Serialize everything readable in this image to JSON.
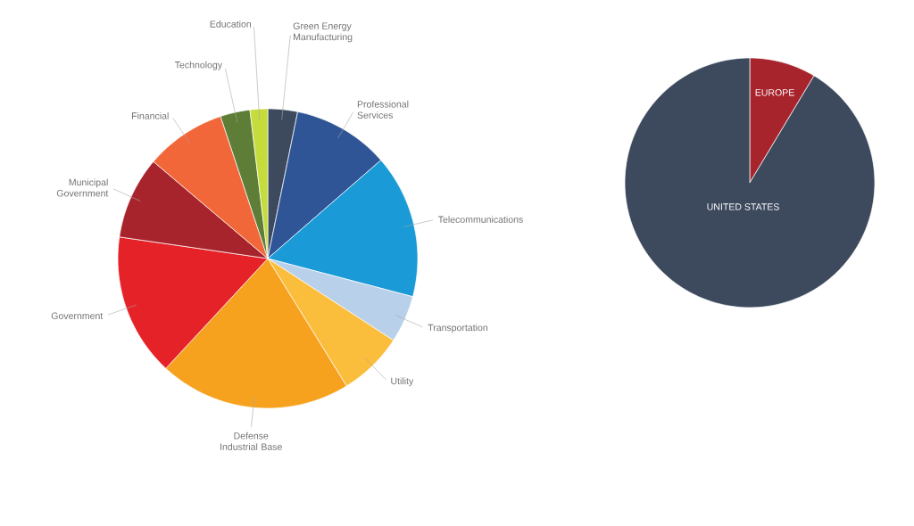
{
  "chart_data": [
    {
      "type": "pie",
      "categories": [
        "Green Energy Manufacturing",
        "Professional Services",
        "Telecommunications",
        "Transportation",
        "Utility",
        "Defense Industrial Base",
        "Government",
        "Municipal Government",
        "Financial",
        "Technology",
        "Education"
      ],
      "values": [
        3.2,
        10.4,
        15.5,
        5.1,
        7.0,
        20.7,
        15.4,
        8.9,
        8.7,
        3.2,
        1.9
      ],
      "colors": [
        "#3d4a5e",
        "#2f5597",
        "#1a9ad6",
        "#b8d0ea",
        "#fbbd3c",
        "#f7a21e",
        "#e52228",
        "#a8242d",
        "#f2673a",
        "#5e7d36",
        "#c5dc3c"
      ]
    },
    {
      "type": "pie",
      "categories": [
        "EUROPE",
        "UNITED STATES"
      ],
      "values": [
        8.6,
        91.4
      ],
      "colors": [
        "#a8242d",
        "#3d4a5e"
      ]
    }
  ]
}
